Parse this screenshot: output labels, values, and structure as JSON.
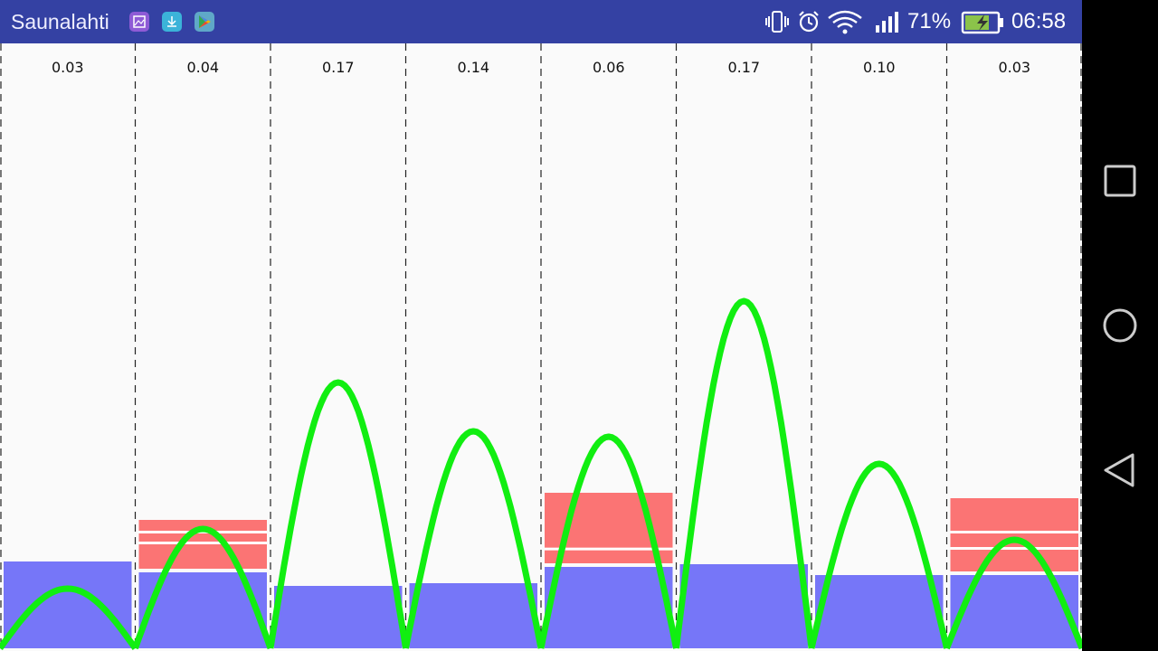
{
  "status_bar": {
    "carrier": "Saunalahti",
    "notifications": [
      "gallery-icon",
      "download-icon",
      "play-store-icon"
    ],
    "icons": [
      "vibrate-icon",
      "alarm-icon",
      "wifi-icon",
      "signal-icon"
    ],
    "battery_percent": "71%",
    "time": "06:58",
    "color": "#3441a3"
  },
  "nav_bar": {
    "buttons": [
      "recents",
      "home",
      "back"
    ]
  },
  "chart_data": {
    "type": "bar",
    "title": "",
    "xlabel": "",
    "ylabel": "",
    "ylim": [
      0,
      1
    ],
    "grid": "dashed vertical separators",
    "column_labels": [
      "0.03",
      "0.04",
      "0.17",
      "0.14",
      "0.06",
      "0.17",
      "0.10",
      "0.03"
    ],
    "series": [
      {
        "values": [
          0.16,
          0.14,
          0.115,
          0.12,
          0.15,
          0.155,
          0.135,
          0.135
        ],
        "color": "#7676f8"
      },
      {
        "values": [
          0.0,
          0.09,
          0.0,
          0.0,
          0.13,
          0.0,
          0.0,
          0.135
        ],
        "color": "#fb7474"
      },
      {
        "values": [
          0.11,
          0.22,
          0.49,
          0.4,
          0.39,
          0.64,
          0.34,
          0.2
        ],
        "color": "#11ee11",
        "kind": "arc"
      }
    ],
    "red_stripes": [
      [],
      [
        2,
        4
      ],
      [],
      [],
      [
        7
      ],
      [],
      [],
      [
        4,
        6
      ]
    ]
  }
}
